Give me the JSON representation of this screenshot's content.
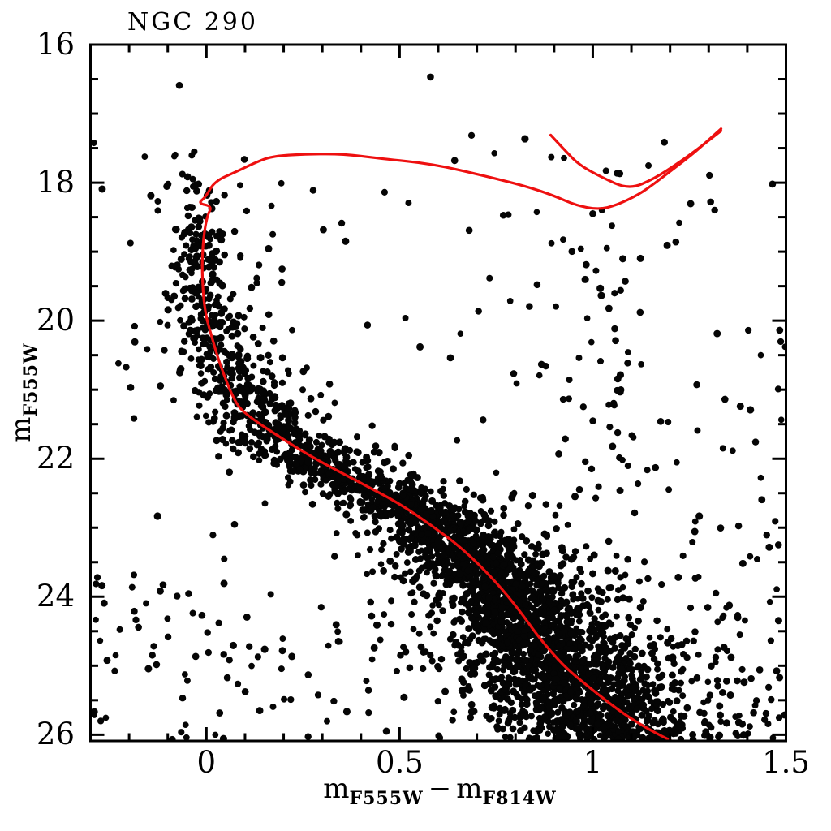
{
  "chart_data": {
    "type": "scatter",
    "title": "NGC 290",
    "xlabel": {
      "m1": "m",
      "sub1": "F555W",
      "minus": "−",
      "m2": "m",
      "sub2": "F814W"
    },
    "ylabel": {
      "m": "m",
      "sub": "F555W"
    },
    "xlim": [
      -0.3,
      1.5
    ],
    "ylim": [
      16,
      26.09
    ],
    "y_axis_inverted": true,
    "grid": false,
    "x_major_ticks": [
      0,
      0.5,
      1,
      1.5
    ],
    "x_tick_labels": [
      "0",
      "0.5",
      "1",
      "1.5"
    ],
    "x_minor_step": 0.1,
    "y_major_ticks": [
      16,
      18,
      20,
      22,
      24,
      26
    ],
    "y_tick_labels": [
      "16",
      "18",
      "20",
      "22",
      "24",
      "26"
    ],
    "y_minor_step": 0.5,
    "point_color": "#050505",
    "isochrone_color": "#ee1010",
    "background_color": "#ffffff",
    "isochrone": {
      "description": "red isochrone overlay, [color, magnitude] pairs",
      "main_branch": [
        [
          1.332,
          17.22
        ],
        [
          1.3,
          17.38
        ],
        [
          1.26,
          17.58
        ],
        [
          1.204,
          17.82
        ],
        [
          1.16,
          18.01
        ],
        [
          1.12,
          18.17
        ],
        [
          1.06,
          18.33
        ],
        [
          1.015,
          18.39
        ],
        [
          0.957,
          18.33
        ],
        [
          0.9,
          18.19
        ],
        [
          0.832,
          18.06
        ],
        [
          0.727,
          17.91
        ],
        [
          0.587,
          17.73
        ],
        [
          0.449,
          17.65
        ],
        [
          0.35,
          17.58
        ],
        [
          0.239,
          17.59
        ],
        [
          0.168,
          17.62
        ],
        [
          0.126,
          17.71
        ],
        [
          0.078,
          17.84
        ],
        [
          0.021,
          17.98
        ],
        [
          -0.002,
          18.21
        ],
        [
          -0.022,
          18.3
        ],
        [
          0.015,
          18.34
        ],
        [
          0.002,
          18.48
        ],
        [
          -0.008,
          18.8
        ],
        [
          -0.012,
          19.27
        ],
        [
          -0.005,
          19.86
        ],
        [
          0.015,
          20.26
        ],
        [
          0.036,
          20.65
        ],
        [
          0.071,
          21.15
        ],
        [
          0.099,
          21.35
        ],
        [
          0.204,
          21.74
        ],
        [
          0.287,
          22.02
        ],
        [
          0.392,
          22.33
        ],
        [
          0.497,
          22.64
        ],
        [
          0.581,
          22.96
        ],
        [
          0.665,
          23.31
        ],
        [
          0.749,
          23.78
        ],
        [
          0.812,
          24.21
        ],
        [
          0.855,
          24.55
        ],
        [
          0.9,
          24.85
        ],
        [
          0.94,
          25.08
        ],
        [
          1.01,
          25.4
        ],
        [
          1.08,
          25.7
        ],
        [
          1.15,
          25.94
        ],
        [
          1.204,
          26.09
        ]
      ],
      "second_branch": [
        [
          0.891,
          17.31
        ],
        [
          0.931,
          17.55
        ],
        [
          0.964,
          17.74
        ],
        [
          1.022,
          17.92
        ],
        [
          1.094,
          18.1
        ],
        [
          1.16,
          17.94
        ],
        [
          1.22,
          17.72
        ],
        [
          1.27,
          17.52
        ],
        [
          1.332,
          17.25
        ]
      ]
    },
    "scatter_model": {
      "description": "statistical model of the ~3600 plotted stars (cluster CMD of NGC 290)",
      "seed": 20,
      "point_radius_px": [
        3.8,
        4.6
      ],
      "main_sequence": {
        "ridge_mag_color": [
          [
            17.5,
            -0.07
          ],
          [
            18.0,
            -0.05
          ],
          [
            18.5,
            -0.03
          ],
          [
            19.0,
            -0.022
          ],
          [
            19.5,
            -0.012
          ],
          [
            20.0,
            0.0
          ],
          [
            20.5,
            0.03
          ],
          [
            21.0,
            0.08
          ],
          [
            21.5,
            0.15
          ],
          [
            22.0,
            0.27
          ],
          [
            22.5,
            0.45
          ],
          [
            23.0,
            0.6
          ],
          [
            23.5,
            0.69
          ],
          [
            24.0,
            0.78
          ],
          [
            24.5,
            0.85
          ],
          [
            25.0,
            0.9
          ],
          [
            25.5,
            0.95
          ],
          [
            26.09,
            1.05
          ]
        ],
        "sigma_mag_color": [
          [
            17.5,
            0.03
          ],
          [
            19.0,
            0.032
          ],
          [
            20.0,
            0.035
          ],
          [
            21.0,
            0.05
          ],
          [
            22.0,
            0.06
          ],
          [
            23.0,
            0.065
          ],
          [
            24.0,
            0.08
          ],
          [
            25.0,
            0.1
          ],
          [
            26.09,
            0.12
          ]
        ],
        "bin_edges": [
          17.5,
          18,
          18.5,
          19,
          19.5,
          20,
          20.5,
          21,
          21.5,
          22,
          22.5,
          23,
          23.5,
          24,
          24.5,
          25,
          25.5,
          26.07
        ],
        "bin_counts": [
          8,
          22,
          40,
          50,
          60,
          70,
          85,
          115,
          165,
          220,
          260,
          300,
          330,
          350,
          370,
          390,
          400
        ],
        "red_tail_fraction": 0.15,
        "blue_tail_fraction": 0.05,
        "wide_halo_fraction": 0.22
      },
      "field_uniform": {
        "n": 150,
        "color_range": [
          -0.3,
          1.5
        ],
        "mag_range": [
          17.3,
          26.07
        ]
      },
      "field_faint": {
        "n": 160,
        "color_range": [
          -0.3,
          1.5
        ],
        "mag_range": [
          23.6,
          26.07
        ]
      },
      "field_red": {
        "n": 45,
        "color_range": [
          0.82,
          1.5
        ],
        "mag_range": [
          18.3,
          24.3
        ]
      },
      "rgb_plume": {
        "n": 38,
        "color_mean": 1.02,
        "color_sigma": 0.06,
        "mag_range": [
          18.5,
          22.6
        ]
      },
      "outliers": [
        [
          -0.07,
          16.59
        ],
        [
          0.58,
          16.47
        ],
        [
          1.07,
          17.87
        ],
        [
          1.0,
          18.45
        ],
        [
          1.305,
          18.28
        ],
        [
          1.215,
          18.86
        ]
      ]
    }
  }
}
